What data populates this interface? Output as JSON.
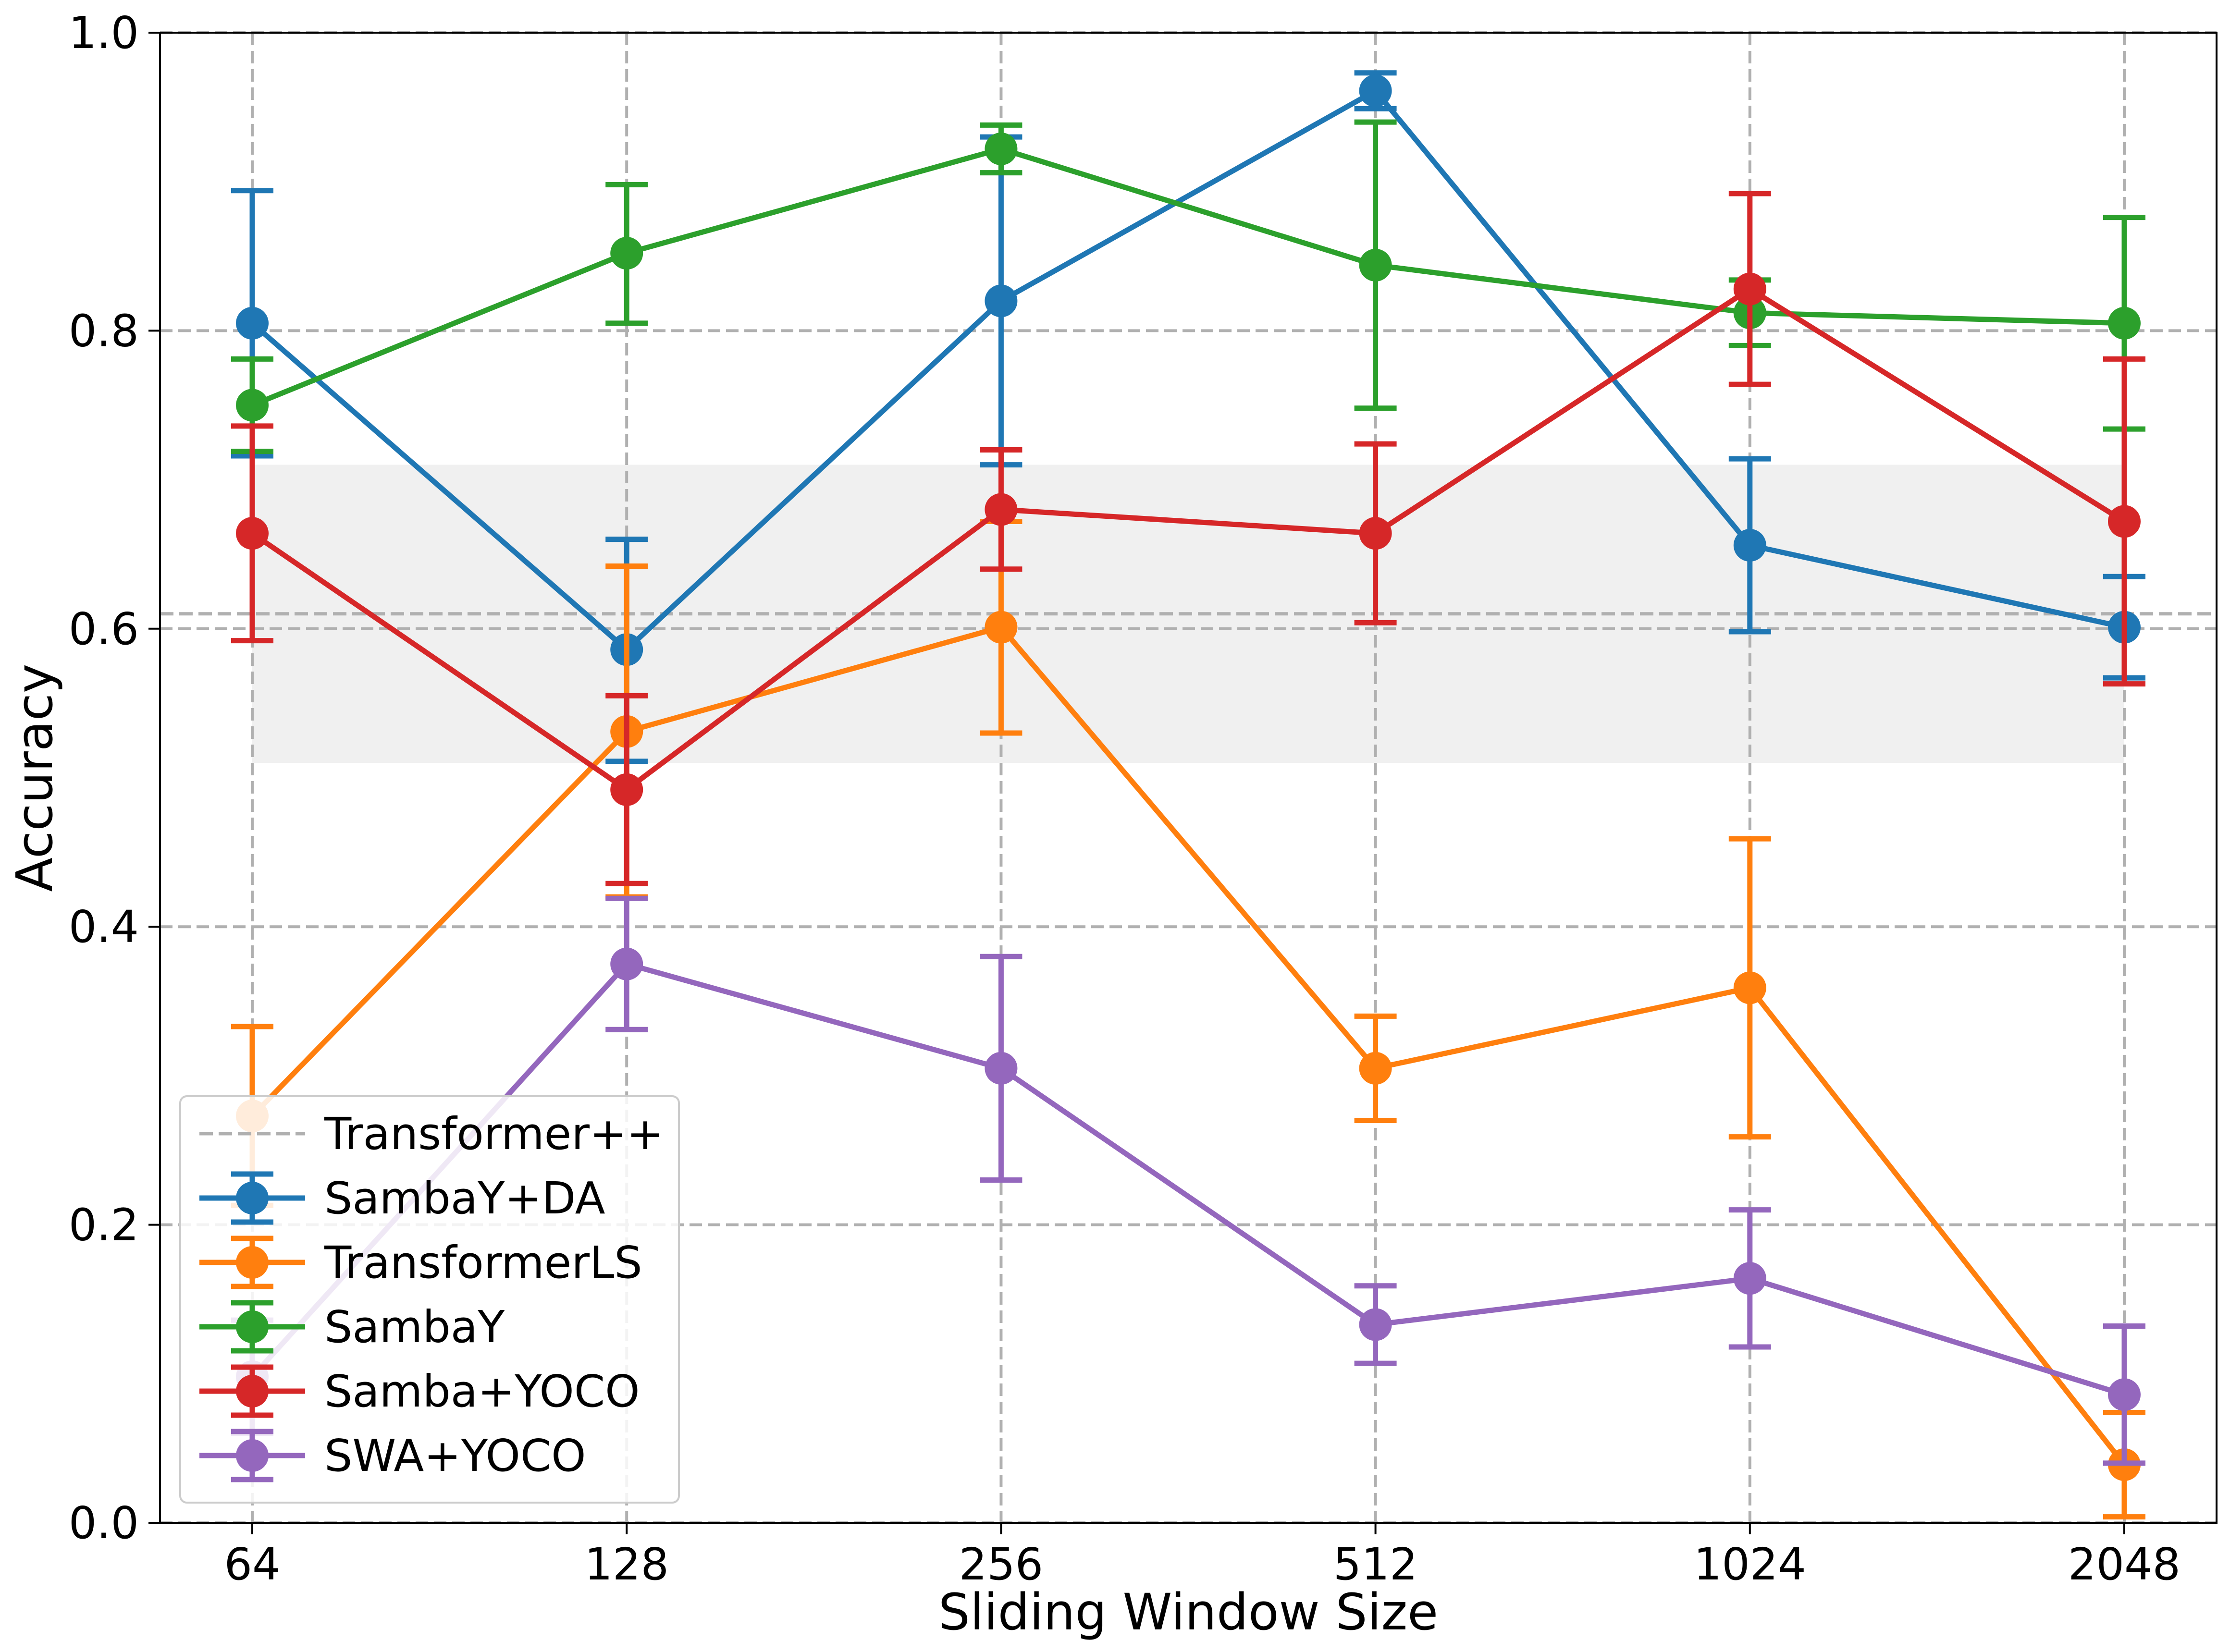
{
  "chart_data": {
    "type": "line",
    "title": "",
    "xlabel": "Sliding Window Size",
    "ylabel": "Accuracy",
    "categories": [
      "64",
      "128",
      "256",
      "512",
      "1024",
      "2048"
    ],
    "yticks": [
      "0.0",
      "0.2",
      "0.4",
      "0.6",
      "0.8",
      "1.0"
    ],
    "ylim": [
      0,
      1
    ],
    "grid": true,
    "legend_position": "lower-left",
    "baseline": {
      "name": "Transformer++",
      "value": 0.61,
      "band": [
        0.51,
        0.71
      ],
      "color": "#b0b0b0"
    },
    "series": [
      {
        "name": "SambaY+DA",
        "color": "#1f77b4",
        "values": [
          0.805,
          0.586,
          0.82,
          0.961,
          0.656,
          0.601
        ],
        "err_low": [
          0.716,
          0.511,
          0.71,
          0.949,
          0.598,
          0.567
        ],
        "err_high": [
          0.894,
          0.66,
          0.93,
          0.973,
          0.714,
          0.635
        ]
      },
      {
        "name": "TransformerLS",
        "color": "#ff7f0e",
        "values": [
          0.273,
          0.531,
          0.601,
          0.305,
          0.359,
          0.039
        ],
        "err_low": [
          0.213,
          0.42,
          0.53,
          0.27,
          0.259,
          0.004
        ],
        "err_high": [
          0.333,
          0.642,
          0.672,
          0.34,
          0.459,
          0.074
        ]
      },
      {
        "name": "SambaY",
        "color": "#2ca02c",
        "values": [
          0.75,
          0.852,
          0.922,
          0.844,
          0.812,
          0.805
        ],
        "err_low": [
          0.719,
          0.805,
          0.906,
          0.748,
          0.79,
          0.734
        ],
        "err_high": [
          0.781,
          0.898,
          0.938,
          0.94,
          0.834,
          0.876
        ]
      },
      {
        "name": "Samba+YOCO",
        "color": "#d62728",
        "values": [
          0.664,
          0.492,
          0.68,
          0.664,
          0.828,
          0.672
        ],
        "err_low": [
          0.592,
          0.429,
          0.64,
          0.604,
          0.764,
          0.563
        ],
        "err_high": [
          0.736,
          0.555,
          0.72,
          0.724,
          0.892,
          0.781
        ]
      },
      {
        "name": "SWA+YOCO",
        "color": "#9467bd",
        "values": [
          0.098,
          0.375,
          0.305,
          0.133,
          0.164,
          0.086
        ],
        "err_low": [
          0.06,
          0.331,
          0.23,
          0.107,
          0.118,
          0.04
        ],
        "err_high": [
          0.136,
          0.419,
          0.38,
          0.159,
          0.21,
          0.132
        ]
      }
    ]
  }
}
